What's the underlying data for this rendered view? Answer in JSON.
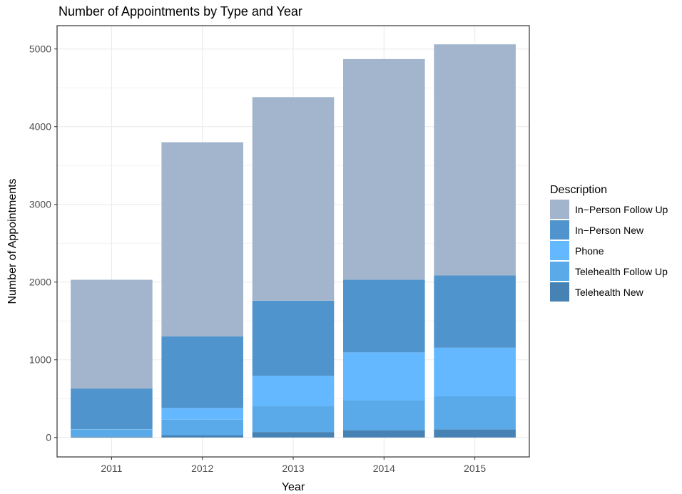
{
  "chart_data": {
    "type": "bar",
    "stacked": true,
    "title": "Number of Appointments by Type and Year",
    "xlabel": "Year",
    "ylabel": "Number of Appointments",
    "categories": [
      "2011",
      "2012",
      "2013",
      "2014",
      "2015"
    ],
    "ylim": [
      -250,
      5300
    ],
    "yticks": [
      0,
      1000,
      2000,
      3000,
      4000,
      5000
    ],
    "grid": true,
    "legend": {
      "title": "Description",
      "position": "right"
    },
    "series": [
      {
        "name": "Telehealth New",
        "color": "#4682b4",
        "values": [
          10,
          30,
          70,
          95,
          105
        ]
      },
      {
        "name": "Telehealth Follow Up",
        "color": "#5aaaea",
        "values": [
          90,
          200,
          335,
          385,
          425
        ]
      },
      {
        "name": "Phone",
        "color": "#63b8ff",
        "values": [
          5,
          150,
          390,
          615,
          625
        ]
      },
      {
        "name": "In−Person New",
        "color": "#4f94cd",
        "values": [
          525,
          920,
          965,
          935,
          930
        ]
      },
      {
        "name": "In−Person Follow Up",
        "color": "#a2b5cd",
        "values": [
          1400,
          2500,
          2620,
          2840,
          2975
        ]
      }
    ],
    "legend_order": [
      "In−Person Follow Up",
      "In−Person New",
      "Phone",
      "Telehealth Follow Up",
      "Telehealth New"
    ]
  }
}
